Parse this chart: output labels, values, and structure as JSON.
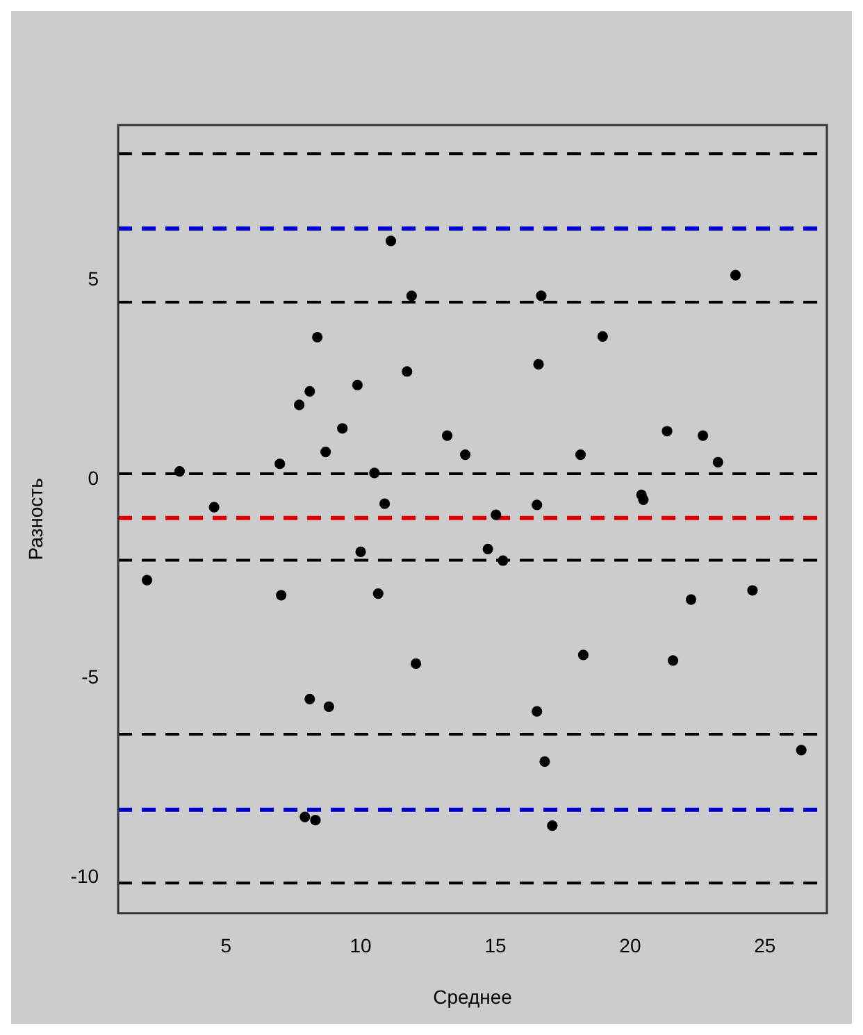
{
  "chart_data": {
    "type": "scatter",
    "xlabel": "Среднее",
    "ylabel": "Разность",
    "x": [
      11.12,
      11.89,
      8.39,
      11.72,
      9.88,
      8.11,
      7.72,
      9.32,
      13.21,
      8.7,
      13.88,
      7.0,
      3.28,
      10.51,
      4.56,
      10.89,
      23.91,
      16.7,
      18.98,
      16.6,
      21.37,
      22.7,
      18.16,
      23.26,
      20.42,
      20.49,
      16.54,
      15.02,
      10.0,
      2.07,
      7.05,
      10.65,
      12.05,
      8.11,
      8.82,
      7.93,
      8.32,
      14.72,
      15.28,
      24.54,
      22.26,
      18.26,
      21.59,
      16.54,
      16.83,
      26.35,
      17.11
    ],
    "values": [
      5.99,
      4.61,
      3.57,
      2.71,
      2.37,
      2.21,
      1.87,
      1.28,
      1.1,
      0.69,
      0.62,
      0.39,
      0.2,
      0.16,
      -0.7,
      -0.61,
      5.13,
      4.61,
      3.59,
      2.89,
      1.21,
      1.1,
      0.62,
      0.43,
      -0.39,
      -0.51,
      -0.64,
      -0.89,
      -1.82,
      -2.53,
      -2.91,
      -2.87,
      -4.63,
      -5.52,
      -5.71,
      -8.48,
      -8.56,
      -1.75,
      -2.04,
      -2.79,
      -3.02,
      -4.41,
      -4.55,
      -5.83,
      -7.09,
      -6.8,
      -8.7
    ],
    "color": "#000000",
    "marker": "circle",
    "xlim": [
      1.0,
      27.3
    ],
    "xticks": [
      5,
      10,
      15,
      20,
      25
    ],
    "ylim": [
      -10.9,
      8.9
    ],
    "yticks": [
      -10,
      -5,
      0,
      5
    ],
    "grid": false,
    "legend": false,
    "ref_lines": [
      {
        "axis": "y",
        "value": 8.18,
        "color": "#000000",
        "line_style": "dashed"
      },
      {
        "axis": "y",
        "value": 6.3,
        "color": "#0000cc",
        "line_style": "dashed"
      },
      {
        "axis": "y",
        "value": 4.45,
        "color": "#000000",
        "line_style": "dashed"
      },
      {
        "axis": "y",
        "value": 0.14,
        "color": "#000000",
        "line_style": "dashed"
      },
      {
        "axis": "y",
        "value": -0.97,
        "color": "#dd0000",
        "line_style": "dashed"
      },
      {
        "axis": "y",
        "value": -2.03,
        "color": "#000000",
        "line_style": "dashed"
      },
      {
        "axis": "y",
        "value": -6.4,
        "color": "#000000",
        "line_style": "dashed"
      },
      {
        "axis": "y",
        "value": -8.3,
        "color": "#0000cc",
        "line_style": "dashed"
      },
      {
        "axis": "y",
        "value": -10.14,
        "color": "#000000",
        "line_style": "dashed"
      }
    ]
  }
}
